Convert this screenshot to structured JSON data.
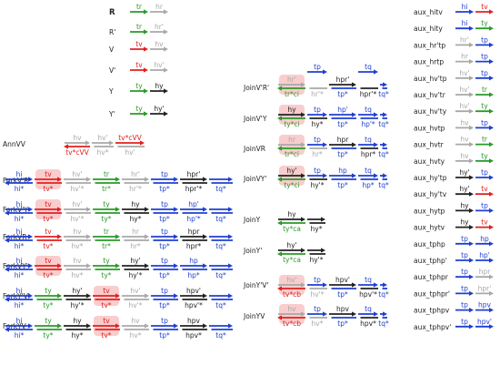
{
  "colors": {
    "blue": "#1f3fd0",
    "red": "#e02020",
    "green": "#2a9a2a",
    "gray": "#a8a8a8",
    "black": "#222222",
    "highlight": "#f6b8b8"
  },
  "rows": [
    {
      "id": "R",
      "label": "R",
      "bold": true,
      "segments": [
        {
          "top": "tr",
          "c": "green"
        },
        {
          "top": "hr",
          "c": "gray"
        }
      ]
    },
    {
      "id": "Rp",
      "label": "R'",
      "segments": [
        {
          "top": "tr",
          "c": "green"
        },
        {
          "top": "hr'",
          "c": "gray"
        }
      ]
    },
    {
      "id": "V",
      "label": "V",
      "segments": [
        {
          "top": "tv",
          "c": "red"
        },
        {
          "top": "hv",
          "c": "gray"
        }
      ]
    },
    {
      "id": "Vp",
      "label": "V'",
      "segments": [
        {
          "top": "tv",
          "c": "red"
        },
        {
          "top": "hv'",
          "c": "gray"
        }
      ]
    },
    {
      "id": "Y",
      "label": "Y",
      "segments": [
        {
          "top": "ty",
          "c": "green"
        },
        {
          "top": "hy",
          "c": "black"
        }
      ]
    },
    {
      "id": "Yp",
      "label": "Y'",
      "segments": [
        {
          "top": "ty",
          "c": "green"
        },
        {
          "top": "hy'",
          "c": "black"
        }
      ]
    },
    {
      "id": "AnnVV",
      "label": "AnnVV",
      "segments": [
        {
          "top": "hv",
          "c": "gray",
          "bot": "tv*cVV",
          "bc": "red"
        },
        {
          "top": "hv'",
          "c": "gray",
          "bot": "hv*",
          "bc": "gray"
        },
        {
          "top": "tv*cVV",
          "c": "red",
          "bot": "hv'",
          "bc": "gray"
        }
      ]
    },
    {
      "id": "ForkVpRp",
      "label": "ForkV'R'",
      "segments": [
        {
          "top": "hi",
          "c": "blue",
          "bot": "hi*",
          "bc": "blue"
        },
        {
          "top": "tv",
          "c": "red",
          "bot": "tv*",
          "bc": "red"
        },
        {
          "top": "hv'",
          "c": "gray",
          "bot": "hv'*",
          "bc": "gray"
        },
        {
          "top": "tr",
          "c": "green",
          "bot": "tr*",
          "bc": "green"
        },
        {
          "top": "hr'",
          "c": "gray",
          "bot": "hr'*",
          "bc": "gray"
        },
        {
          "top": "tp",
          "c": "blue",
          "bot": "tp*",
          "bc": "blue"
        },
        {
          "top": "hpr'",
          "c": "black",
          "bot": "hpr'*",
          "bc": "black"
        },
        {
          "top": "",
          "c": "blue",
          "bot": "tq*",
          "bc": "blue"
        }
      ]
    },
    {
      "id": "ForkVpY",
      "label": "ForkV'Y",
      "segments": [
        {
          "top": "hi",
          "c": "blue",
          "bot": "hi*",
          "bc": "blue"
        },
        {
          "top": "tv",
          "c": "red",
          "bot": "tv*",
          "bc": "red"
        },
        {
          "top": "hv'",
          "c": "gray",
          "bot": "hv'*",
          "bc": "gray"
        },
        {
          "top": "ty",
          "c": "green",
          "bot": "ty*",
          "bc": "green"
        },
        {
          "top": "hy",
          "c": "black",
          "bot": "hy*",
          "bc": "black"
        },
        {
          "top": "tp",
          "c": "blue",
          "bot": "tp*",
          "bc": "blue"
        },
        {
          "top": "hp'",
          "c": "blue",
          "bot": "hp'*",
          "bc": "blue"
        },
        {
          "top": "",
          "c": "blue",
          "bot": "tq*",
          "bc": "blue"
        }
      ]
    },
    {
      "id": "ForkVR",
      "label": "ForkVR",
      "segments": [
        {
          "top": "hi",
          "c": "blue",
          "bot": "hi*",
          "bc": "blue"
        },
        {
          "top": "tv",
          "c": "red",
          "bot": "tv*",
          "bc": "red"
        },
        {
          "top": "hv",
          "c": "gray",
          "bot": "hv*",
          "bc": "gray"
        },
        {
          "top": "tr",
          "c": "green",
          "bot": "tr*",
          "bc": "green"
        },
        {
          "top": "hr",
          "c": "gray",
          "bot": "hr*",
          "bc": "gray"
        },
        {
          "top": "tp",
          "c": "blue",
          "bot": "tp*",
          "bc": "blue"
        },
        {
          "top": "hpr",
          "c": "black",
          "bot": "hpr*",
          "bc": "black"
        },
        {
          "top": "",
          "c": "blue",
          "bot": "tq*",
          "bc": "blue"
        }
      ]
    },
    {
      "id": "ForkVYp",
      "label": "ForkVY'",
      "segments": [
        {
          "top": "hi",
          "c": "blue",
          "bot": "hi*",
          "bc": "blue"
        },
        {
          "top": "tv",
          "c": "red",
          "bot": "tv*",
          "bc": "red"
        },
        {
          "top": "hv",
          "c": "gray",
          "bot": "hv*",
          "bc": "gray"
        },
        {
          "top": "ty",
          "c": "green",
          "bot": "ty*",
          "bc": "green"
        },
        {
          "top": "hy'",
          "c": "black",
          "bot": "hy'*",
          "bc": "black"
        },
        {
          "top": "tp",
          "c": "blue",
          "bot": "tp*",
          "bc": "blue"
        },
        {
          "top": "hp",
          "c": "blue",
          "bot": "hp*",
          "bc": "blue"
        },
        {
          "top": "",
          "c": "blue",
          "bot": "tq*",
          "bc": "blue"
        }
      ]
    },
    {
      "id": "ForkYpVp",
      "label": "ForkY'V'",
      "segments": [
        {
          "top": "hi",
          "c": "blue",
          "bot": "hi*",
          "bc": "blue"
        },
        {
          "top": "ty",
          "c": "green",
          "bot": "ty*",
          "bc": "green"
        },
        {
          "top": "hy'",
          "c": "black",
          "bot": "hy'*",
          "bc": "black"
        },
        {
          "top": "tv",
          "c": "red",
          "bot": "tv*",
          "bc": "red"
        },
        {
          "top": "hv'",
          "c": "gray",
          "bot": "hv'*",
          "bc": "gray"
        },
        {
          "top": "tp",
          "c": "blue",
          "bot": "tp*",
          "bc": "blue"
        },
        {
          "top": "hpv'",
          "c": "black",
          "bot": "hpv'*",
          "bc": "black"
        },
        {
          "top": "",
          "c": "blue",
          "bot": "tq*",
          "bc": "blue"
        }
      ]
    },
    {
      "id": "ForkYV",
      "label": "ForkYV",
      "segments": [
        {
          "top": "hi",
          "c": "blue",
          "bot": "hi*",
          "bc": "blue"
        },
        {
          "top": "ty",
          "c": "green",
          "bot": "ty*",
          "bc": "green"
        },
        {
          "top": "hy",
          "c": "black",
          "bot": "hy*",
          "bc": "black"
        },
        {
          "top": "tv",
          "c": "red",
          "bot": "tv*",
          "bc": "red"
        },
        {
          "top": "hv",
          "c": "gray",
          "bot": "hv*",
          "bc": "gray"
        },
        {
          "top": "tp",
          "c": "blue",
          "bot": "tp*",
          "bc": "blue"
        },
        {
          "top": "hpv",
          "c": "black",
          "bot": "hpv*",
          "bc": "black"
        },
        {
          "top": "",
          "c": "blue",
          "bot": "tq*",
          "bc": "blue"
        }
      ]
    },
    {
      "id": "JoinVpRp",
      "label": "JoinV'R'",
      "segments": [
        {
          "top": "hr'",
          "c": "gray",
          "bot": "tr*ci",
          "bc": "green"
        },
        {
          "top": "tp",
          "c": "blue",
          "bot": "hr'*",
          "bc": "gray"
        },
        {
          "top": "hpr'",
          "c": "black",
          "bot": "tp*",
          "bc": "blue"
        },
        {
          "top": "tq",
          "c": "blue",
          "bot": "hpr'*",
          "bc": "black"
        },
        {
          "top": "",
          "c": "blue",
          "bot": "tq*",
          "bc": "blue"
        }
      ]
    },
    {
      "id": "JoinVpY",
      "label": "JoinV'Y",
      "segments": [
        {
          "top": "hy",
          "c": "black",
          "bot": "ty*ci",
          "bc": "green"
        },
        {
          "top": "tp",
          "c": "blue",
          "bot": "hy*",
          "bc": "black"
        },
        {
          "top": "hp'",
          "c": "blue",
          "bot": "tp*",
          "bc": "blue"
        },
        {
          "top": "tq",
          "c": "blue",
          "bot": "hp'*",
          "bc": "blue"
        },
        {
          "top": "",
          "c": "blue",
          "bot": "tq*",
          "bc": "blue"
        }
      ]
    },
    {
      "id": "JoinVR",
      "label": "JoinVR",
      "segments": [
        {
          "top": "hr",
          "c": "gray",
          "bot": "tr*ci",
          "bc": "green"
        },
        {
          "top": "tp",
          "c": "blue",
          "bot": "hr*",
          "bc": "gray"
        },
        {
          "top": "hpr",
          "c": "black",
          "bot": "tp*",
          "bc": "blue"
        },
        {
          "top": "tq",
          "c": "blue",
          "bot": "hpr*",
          "bc": "black"
        },
        {
          "top": "",
          "c": "blue",
          "bot": "tq*",
          "bc": "blue"
        }
      ]
    },
    {
      "id": "JoinVYp",
      "label": "JoinVY'",
      "segments": [
        {
          "top": "hy'",
          "c": "black",
          "bot": "ty*ci",
          "bc": "green"
        },
        {
          "top": "tp",
          "c": "blue",
          "bot": "hy'*",
          "bc": "black"
        },
        {
          "top": "hp",
          "c": "blue",
          "bot": "tp*",
          "bc": "blue"
        },
        {
          "top": "tq",
          "c": "blue",
          "bot": "hp*",
          "bc": "blue"
        },
        {
          "top": "",
          "c": "blue",
          "bot": "tq*",
          "bc": "blue"
        }
      ]
    },
    {
      "id": "JoinY",
      "label": "JoinY",
      "segments": [
        {
          "top": "hy",
          "c": "black",
          "bot": "ty*ca",
          "bc": "green"
        },
        {
          "top": "",
          "c": "black",
          "bot": "hy*",
          "bc": "black"
        }
      ]
    },
    {
      "id": "JoinYp",
      "label": "JoinY'",
      "segments": [
        {
          "top": "hy'",
          "c": "black",
          "bot": "ty*ca",
          "bc": "green"
        },
        {
          "top": "",
          "c": "black",
          "bot": "hy'*",
          "bc": "black"
        }
      ]
    },
    {
      "id": "JoinYpVp",
      "label": "JoinY'V'",
      "segments": [
        {
          "top": "hv'",
          "c": "gray",
          "bot": "tv*cb",
          "bc": "red"
        },
        {
          "top": "tp",
          "c": "blue",
          "bot": "hv'*",
          "bc": "gray"
        },
        {
          "top": "hpv'",
          "c": "black",
          "bot": "tp*",
          "bc": "blue"
        },
        {
          "top": "tq",
          "c": "blue",
          "bot": "hpv'*",
          "bc": "black"
        },
        {
          "top": "",
          "c": "blue",
          "bot": "tq*",
          "bc": "blue"
        }
      ]
    },
    {
      "id": "JoinYV",
      "label": "JoinYV",
      "segments": [
        {
          "top": "hv",
          "c": "gray",
          "bot": "tv*cb",
          "bc": "red"
        },
        {
          "top": "tp",
          "c": "blue",
          "bot": "hv*",
          "bc": "gray"
        },
        {
          "top": "hpv",
          "c": "black",
          "bot": "tp*",
          "bc": "blue"
        },
        {
          "top": "tq",
          "c": "blue",
          "bot": "hpv*",
          "bc": "black"
        },
        {
          "top": "",
          "c": "blue",
          "bot": "tq*",
          "bc": "blue"
        }
      ]
    },
    {
      "id": "aux_hitv",
      "label": "aux_hitv",
      "segments": [
        {
          "top": "hi",
          "c": "blue"
        },
        {
          "top": "tv",
          "c": "red"
        }
      ]
    },
    {
      "id": "aux_hity",
      "label": "aux_hity",
      "segments": [
        {
          "top": "hi",
          "c": "blue"
        },
        {
          "top": "ty",
          "c": "green"
        }
      ]
    },
    {
      "id": "aux_hrptp",
      "label": "aux_hr'tp",
      "segments": [
        {
          "top": "hr'",
          "c": "gray"
        },
        {
          "top": "tp",
          "c": "blue"
        }
      ]
    },
    {
      "id": "aux_hrtp",
      "label": "aux_hrtp",
      "segments": [
        {
          "top": "hr",
          "c": "gray"
        },
        {
          "top": "tp",
          "c": "blue"
        }
      ]
    },
    {
      "id": "aux_hvptp",
      "label": "aux_hv'tp",
      "segments": [
        {
          "top": "hv'",
          "c": "gray"
        },
        {
          "top": "tp",
          "c": "blue"
        }
      ]
    },
    {
      "id": "aux_hvptr",
      "label": "aux_hv'tr",
      "segments": [
        {
          "top": "hv'",
          "c": "gray"
        },
        {
          "top": "tr",
          "c": "green"
        }
      ]
    },
    {
      "id": "aux_hvpty",
      "label": "aux_hv'ty",
      "segments": [
        {
          "top": "hv'",
          "c": "gray"
        },
        {
          "top": "ty",
          "c": "green"
        }
      ]
    },
    {
      "id": "aux_hvtp",
      "label": "aux_hvtp",
      "segments": [
        {
          "top": "hv",
          "c": "gray"
        },
        {
          "top": "tp",
          "c": "blue"
        }
      ]
    },
    {
      "id": "aux_hvtr",
      "label": "aux_hvtr",
      "segments": [
        {
          "top": "hv",
          "c": "gray"
        },
        {
          "top": "tr",
          "c": "green"
        }
      ]
    },
    {
      "id": "aux_hvty",
      "label": "aux_hvty",
      "segments": [
        {
          "top": "hv",
          "c": "gray"
        },
        {
          "top": "ty",
          "c": "green"
        }
      ]
    },
    {
      "id": "aux_hyptp",
      "label": "aux_hy'tp",
      "segments": [
        {
          "top": "hy'",
          "c": "black"
        },
        {
          "top": "tp",
          "c": "blue"
        }
      ]
    },
    {
      "id": "aux_hyptv",
      "label": "aux_hy'tv",
      "segments": [
        {
          "top": "hy'",
          "c": "black"
        },
        {
          "top": "tv",
          "c": "red"
        }
      ]
    },
    {
      "id": "aux_hytp",
      "label": "aux_hytp",
      "segments": [
        {
          "top": "hy",
          "c": "black"
        },
        {
          "top": "tp",
          "c": "blue"
        }
      ]
    },
    {
      "id": "aux_hytv",
      "label": "aux_hytv",
      "segments": [
        {
          "top": "hy",
          "c": "black"
        },
        {
          "top": "tv",
          "c": "red"
        }
      ]
    },
    {
      "id": "aux_tphp",
      "label": "aux_tphp",
      "segments": [
        {
          "top": "tp",
          "c": "blue"
        },
        {
          "top": "hp",
          "c": "blue"
        }
      ]
    },
    {
      "id": "aux_tphpp",
      "label": "aux_tphp'",
      "segments": [
        {
          "top": "tp",
          "c": "blue"
        },
        {
          "top": "hp'",
          "c": "blue"
        }
      ]
    },
    {
      "id": "aux_tphpr",
      "label": "aux_tphpr",
      "segments": [
        {
          "top": "tp",
          "c": "blue"
        },
        {
          "top": "hpr",
          "c": "gray"
        }
      ]
    },
    {
      "id": "aux_tphprp",
      "label": "aux_tphpr'",
      "segments": [
        {
          "top": "tp",
          "c": "blue"
        },
        {
          "top": "hpr'",
          "c": "gray"
        }
      ]
    },
    {
      "id": "aux_tphpv",
      "label": "aux_tphpv",
      "segments": [
        {
          "top": "tp",
          "c": "blue"
        },
        {
          "top": "hpv",
          "c": "blue"
        }
      ]
    },
    {
      "id": "aux_tphpvp",
      "label": "aux_tphpv'",
      "segments": [
        {
          "top": "tp",
          "c": "blue"
        },
        {
          "top": "hpv'",
          "c": "blue"
        }
      ]
    }
  ]
}
